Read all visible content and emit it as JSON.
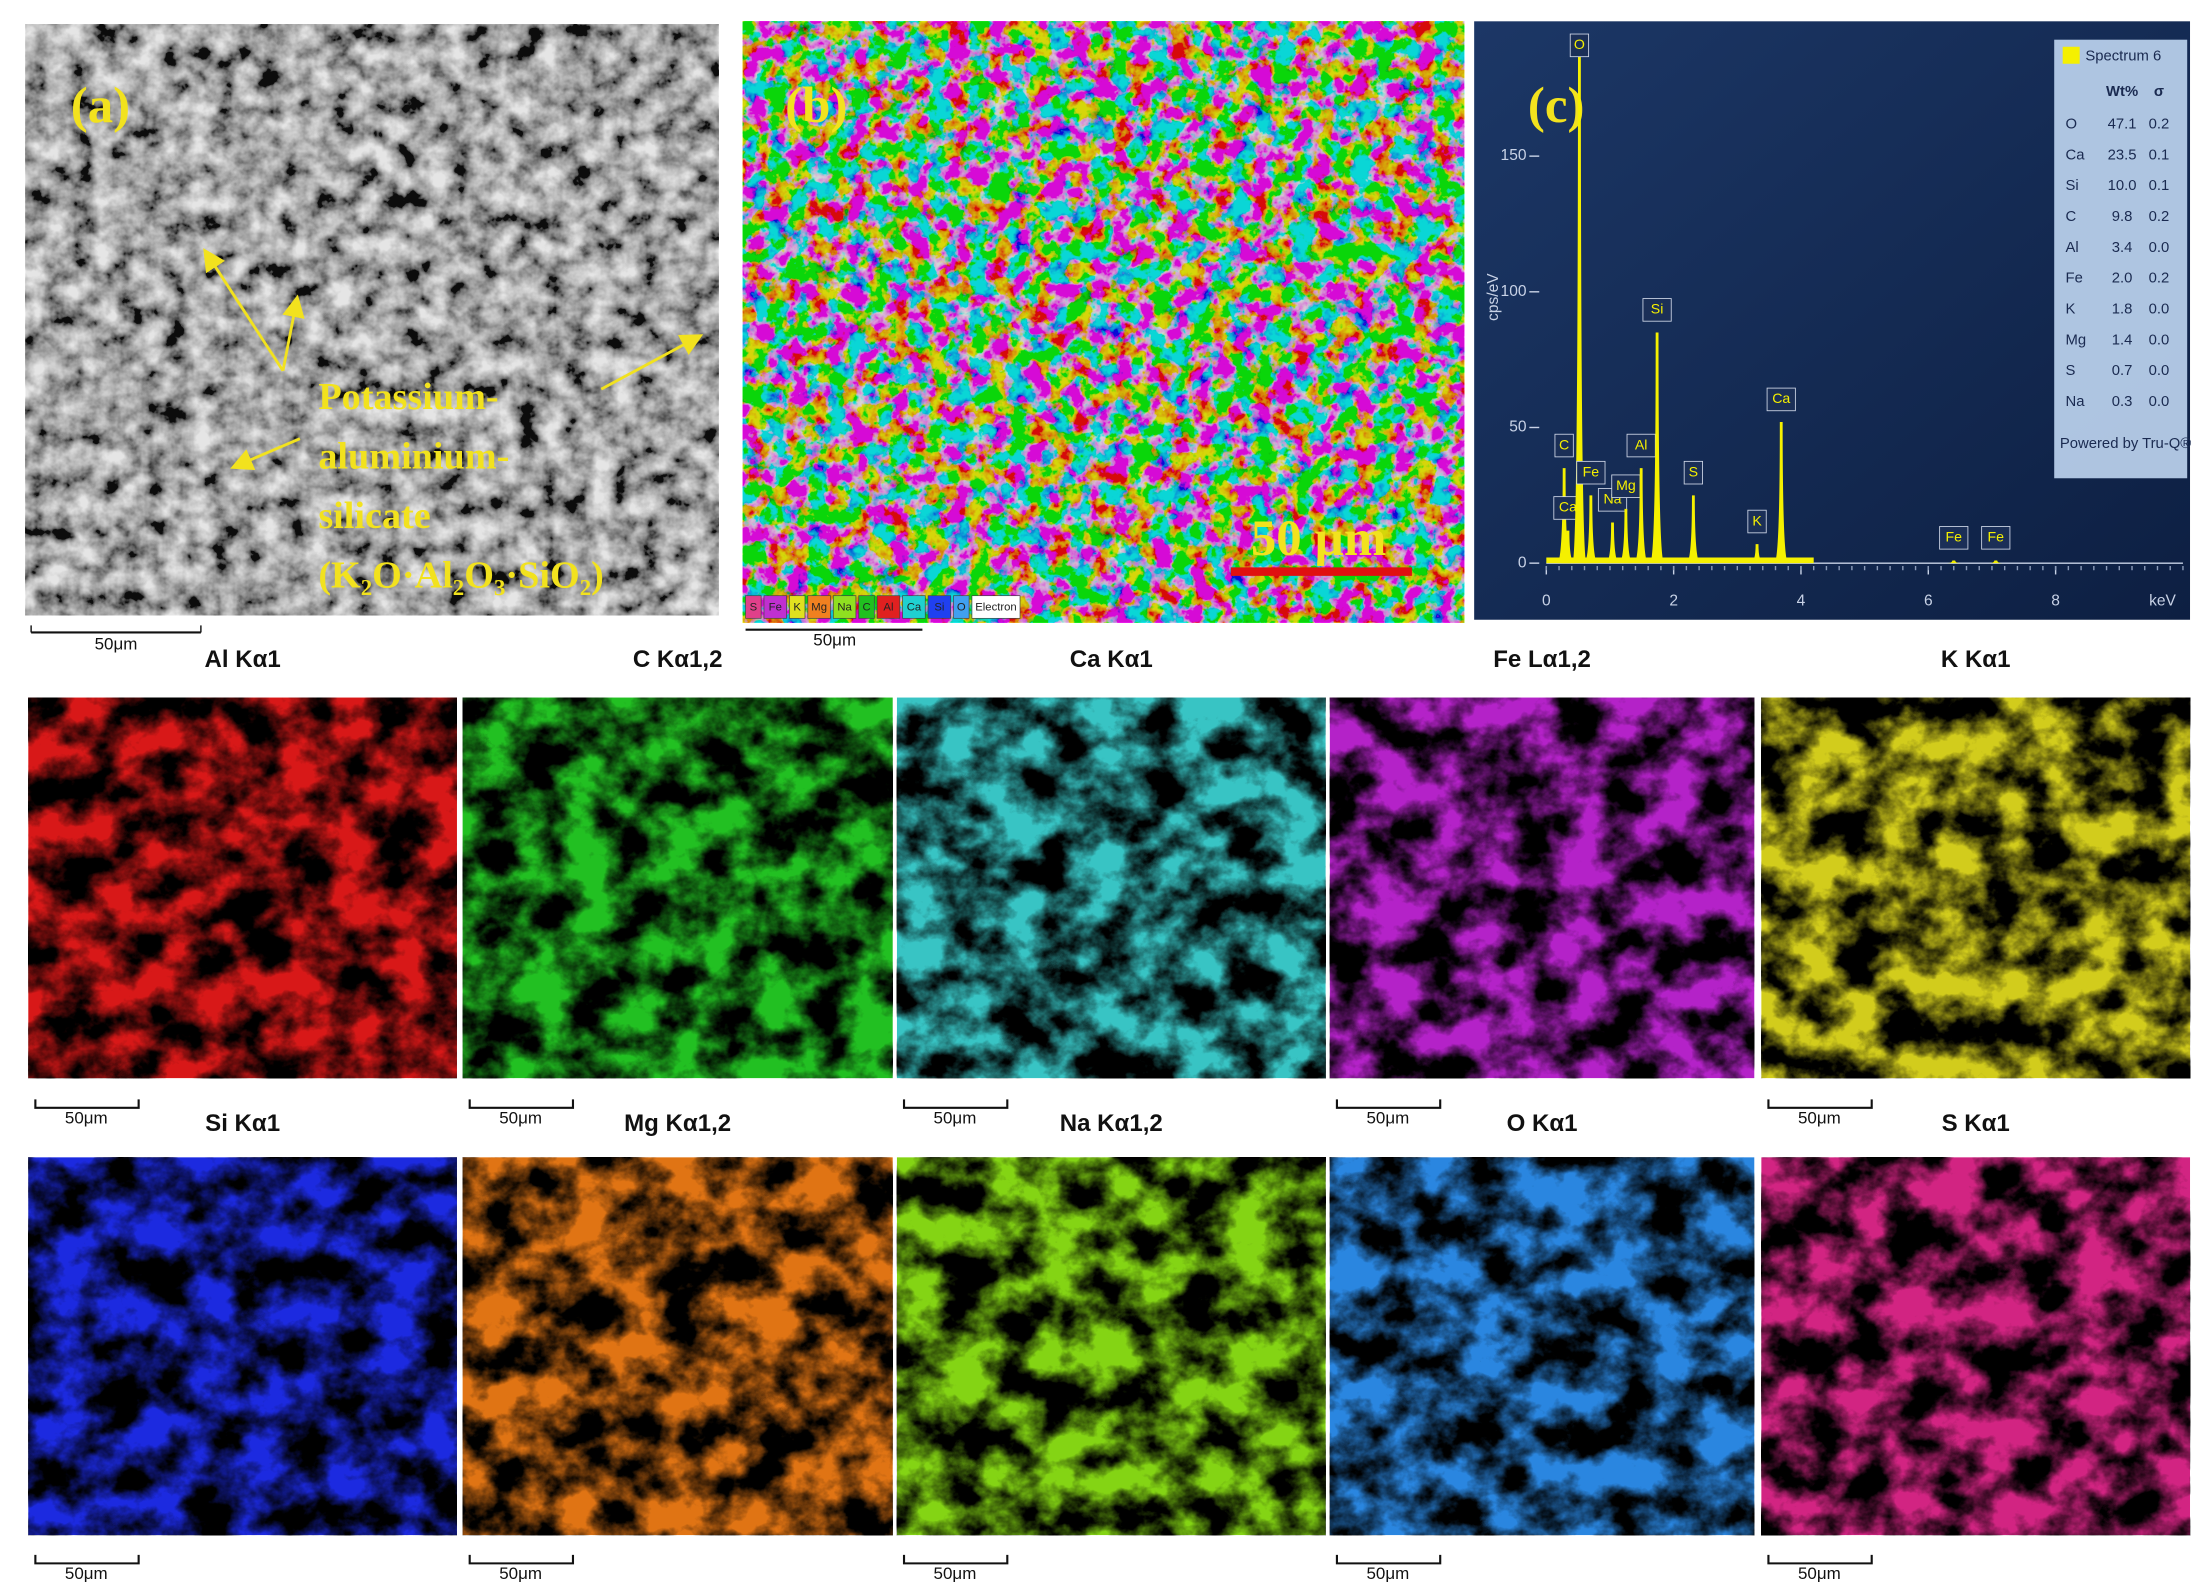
{
  "panel_a": {
    "label": "(a)",
    "annotation": [
      "Potassium-",
      "aluminium-",
      "silicate",
      "(K₂O·Al₂O₃·SiO₂)"
    ],
    "scale_bar": "50μm"
  },
  "panel_b": {
    "label": "(b)",
    "overlay_scale": "50 µm",
    "scale_bar": "50μm",
    "legend": [
      {
        "symbol": "S",
        "color": "#e0408a"
      },
      {
        "symbol": "Fe",
        "color": "#c030d0"
      },
      {
        "symbol": "K",
        "color": "#e0e020"
      },
      {
        "symbol": "Mg",
        "color": "#f08020"
      },
      {
        "symbol": "Na",
        "color": "#90e020"
      },
      {
        "symbol": "C",
        "color": "#20c020"
      },
      {
        "symbol": "Al",
        "color": "#e02020"
      },
      {
        "symbol": "Ca",
        "color": "#20d0d0"
      },
      {
        "symbol": "Si",
        "color": "#2040f0"
      },
      {
        "symbol": "O",
        "color": "#40a0f0"
      },
      {
        "symbol": "Electron",
        "color": "#ffffff"
      }
    ]
  },
  "panel_c": {
    "label": "(c)",
    "y_label": "cps/eV",
    "x_label": "keV",
    "xlim": [
      0,
      10
    ],
    "ylim": [
      0,
      195
    ],
    "xticks": [
      0,
      2,
      4,
      6,
      8
    ],
    "yticks": [
      0,
      50,
      100,
      150
    ],
    "color": "#f5f000",
    "peaks": [
      {
        "label": "C",
        "energy": 0.28,
        "height": 35
      },
      {
        "label": "Ca",
        "energy": 0.34,
        "height": 12
      },
      {
        "label": "O",
        "energy": 0.52,
        "height": 195
      },
      {
        "label": "Fe",
        "energy": 0.7,
        "height": 25
      },
      {
        "label": "Na",
        "energy": 1.04,
        "height": 15
      },
      {
        "label": "Mg",
        "energy": 1.25,
        "height": 20
      },
      {
        "label": "Al",
        "energy": 1.49,
        "height": 35
      },
      {
        "label": "Si",
        "energy": 1.74,
        "height": 85
      },
      {
        "label": "S",
        "energy": 2.31,
        "height": 25
      },
      {
        "label": "K",
        "energy": 3.31,
        "height": 7
      },
      {
        "label": "Ca",
        "energy": 3.69,
        "height": 52
      },
      {
        "label": "Fe",
        "energy": 6.4,
        "height": 1
      },
      {
        "label": "Fe",
        "energy": 7.06,
        "height": 1
      }
    ],
    "table": {
      "title": "Spectrum 6",
      "columns": [
        "Wt%",
        "σ"
      ],
      "footer": "Powered by Tru-Q®",
      "rows": [
        [
          "O",
          "47.1",
          "0.2"
        ],
        [
          "Ca",
          "23.5",
          "0.1"
        ],
        [
          "Si",
          "10.0",
          "0.1"
        ],
        [
          "C",
          "9.8",
          "0.2"
        ],
        [
          "Al",
          "3.4",
          "0.0"
        ],
        [
          "Fe",
          "2.0",
          "0.2"
        ],
        [
          "K",
          "1.8",
          "0.0"
        ],
        [
          "Mg",
          "1.4",
          "0.0"
        ],
        [
          "S",
          "0.7",
          "0.0"
        ],
        [
          "Na",
          "0.3",
          "0.0"
        ]
      ],
      "row_colors": [
        "#1a2a50",
        "#1a2a50",
        "#1a2a50",
        "#1a2a50",
        "#1a2a50",
        "#e02020",
        "#1a2a50",
        "#1a2a50",
        "#1a2a50",
        "#1a2a50"
      ]
    }
  },
  "maps": [
    {
      "title": "Al Kα1",
      "color": "#d81818",
      "scale_bar": "50μm"
    },
    {
      "title": "C Kα1,2",
      "color": "#22c022",
      "scale_bar": "50μm"
    },
    {
      "title": "Ca Kα1",
      "color": "#38c4c4",
      "scale_bar": "50μm"
    },
    {
      "title": "Fe Lα1,2",
      "color": "#b422c8",
      "scale_bar": "50μm"
    },
    {
      "title": "K Kα1",
      "color": "#d2cc1c",
      "scale_bar": "50μm"
    },
    {
      "title": "Si Kα1",
      "color": "#1c2ae0",
      "scale_bar": "50μm"
    },
    {
      "title": "Mg Kα1,2",
      "color": "#e07414",
      "scale_bar": "50μm"
    },
    {
      "title": "Na Kα1,2",
      "color": "#84d414",
      "scale_bar": "50μm"
    },
    {
      "title": "O Kα1",
      "color": "#2a86e0",
      "scale_bar": "50μm"
    },
    {
      "title": "S Kα1",
      "color": "#d22482",
      "scale_bar": "50μm"
    }
  ]
}
